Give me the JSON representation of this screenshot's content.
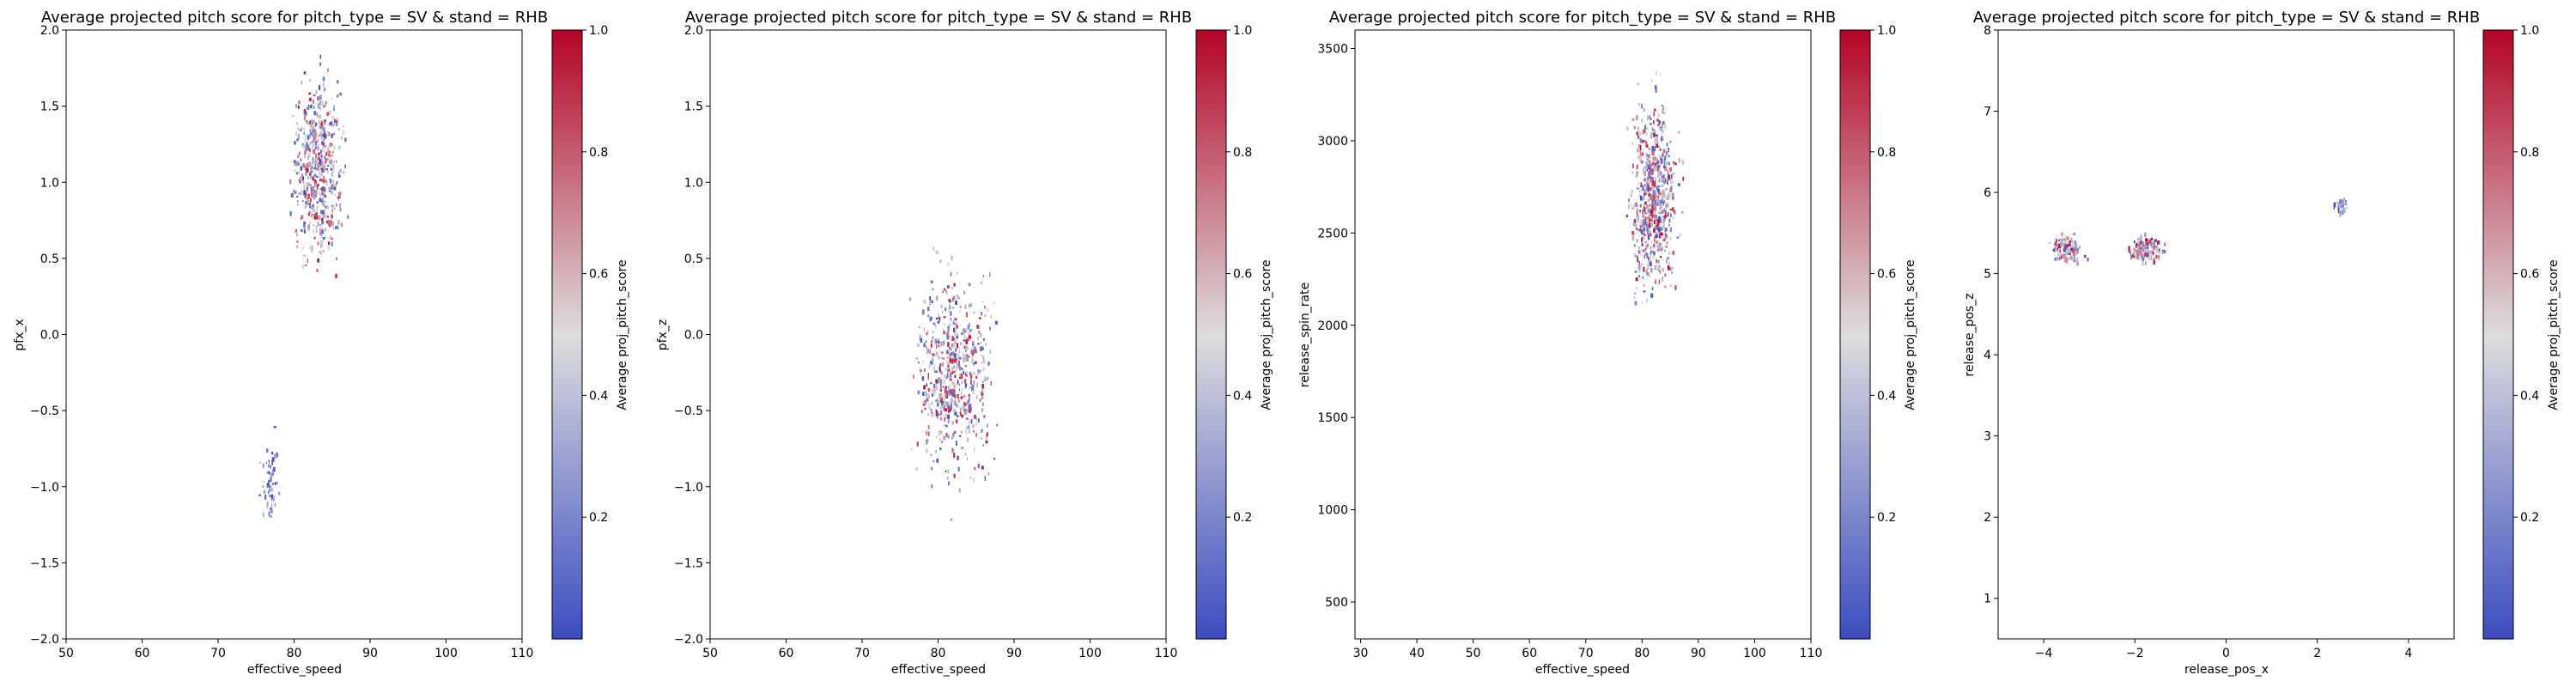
{
  "colormap": {
    "name": "coolwarm",
    "low": "#3b4cc0",
    "mid": "#dddddd",
    "high": "#b40426"
  },
  "chart_data": [
    {
      "type": "heatmap",
      "title": "Average projected pitch score for pitch_type = SV & stand = RHB",
      "xlabel": "effective_speed",
      "ylabel": "pfx_x",
      "colorbar_label": "Average proj_pitch_score",
      "xlim": [
        50,
        110
      ],
      "ylim": [
        -2.0,
        2.0
      ],
      "xticks": [
        "50",
        "60",
        "70",
        "80",
        "90",
        "100",
        "110"
      ],
      "yticks": [
        "−2.0",
        "−1.5",
        "−1.0",
        "−0.5",
        "0.0",
        "0.5",
        "1.0",
        "1.5",
        "2.0"
      ],
      "colorbar_ticks": [
        "0.2",
        "0.4",
        "0.6",
        "0.8",
        "1.0"
      ],
      "clim": [
        0.0,
        1.0
      ],
      "clusters": [
        {
          "x": [
            78,
            88
          ],
          "y": [
            0.25,
            1.9
          ],
          "score": [
            0.0,
            1.0
          ],
          "count": 520
        },
        {
          "x": [
            75,
            78.5
          ],
          "y": [
            -1.4,
            -0.55
          ],
          "score": [
            0.0,
            0.35
          ],
          "count": 60
        }
      ]
    },
    {
      "type": "heatmap",
      "title": "Average projected pitch score for pitch_type = SV & stand = RHB",
      "xlabel": "effective_speed",
      "ylabel": "pfx_z",
      "colorbar_label": "Average proj_pitch_score",
      "xlim": [
        50,
        110
      ],
      "ylim": [
        -2.0,
        2.0
      ],
      "xticks": [
        "50",
        "60",
        "70",
        "80",
        "90",
        "100",
        "110"
      ],
      "yticks": [
        "−2.0",
        "−1.5",
        "−1.0",
        "−0.5",
        "0.0",
        "0.5",
        "1.0",
        "1.5",
        "2.0"
      ],
      "colorbar_ticks": [
        "0.2",
        "0.4",
        "0.6",
        "0.8",
        "1.0"
      ],
      "clim": [
        0.0,
        1.0
      ],
      "clusters": [
        {
          "x": [
            75,
            89
          ],
          "y": [
            -1.2,
            0.7
          ],
          "score": [
            0.0,
            1.0
          ],
          "count": 600
        }
      ]
    },
    {
      "type": "heatmap",
      "title": "Average projected pitch score for pitch_type = SV & stand = RHB",
      "xlabel": "effective_speed",
      "ylabel": "release_spin_rate",
      "colorbar_label": "Average proj_pitch_score",
      "xlim": [
        29,
        110
      ],
      "ylim": [
        300,
        3600
      ],
      "xticks": [
        "30",
        "40",
        "50",
        "60",
        "70",
        "80",
        "90",
        "100",
        "110"
      ],
      "yticks": [
        "500",
        "1000",
        "1500",
        "2000",
        "2500",
        "3000",
        "3500"
      ],
      "colorbar_ticks": [
        "0.2",
        "0.4",
        "0.6",
        "0.8",
        "1.0"
      ],
      "clim": [
        0.0,
        1.0
      ],
      "clusters": [
        {
          "x": [
            76,
            88
          ],
          "y": [
            2000,
            3400
          ],
          "score": [
            0.0,
            1.0
          ],
          "count": 650
        }
      ]
    },
    {
      "type": "heatmap",
      "title": "Average projected pitch score for pitch_type = SV & stand = RHB",
      "xlabel": "release_pos_x",
      "ylabel": "release_pos_z",
      "colorbar_label": "Average proj_pitch_score",
      "xlim": [
        -5,
        5
      ],
      "ylim": [
        0.5,
        8.0
      ],
      "xticks": [
        "−4",
        "−2",
        "0",
        "2",
        "4"
      ],
      "yticks": [
        "1",
        "2",
        "3",
        "4",
        "5",
        "6",
        "7",
        "8"
      ],
      "colorbar_ticks": [
        "0.2",
        "0.4",
        "0.6",
        "0.8",
        "1.0"
      ],
      "clim": [
        0.0,
        1.0
      ],
      "clusters": [
        {
          "x": [
            -4.0,
            -3.0
          ],
          "y": [
            5.05,
            5.6
          ],
          "score": [
            0.0,
            1.0
          ],
          "count": 120
        },
        {
          "x": [
            -2.3,
            -1.2
          ],
          "y": [
            5.1,
            5.55
          ],
          "score": [
            0.0,
            1.0
          ],
          "count": 140
        },
        {
          "x": [
            2.3,
            2.7
          ],
          "y": [
            5.7,
            6.0
          ],
          "score": [
            0.0,
            0.4
          ],
          "count": 30
        }
      ]
    }
  ]
}
